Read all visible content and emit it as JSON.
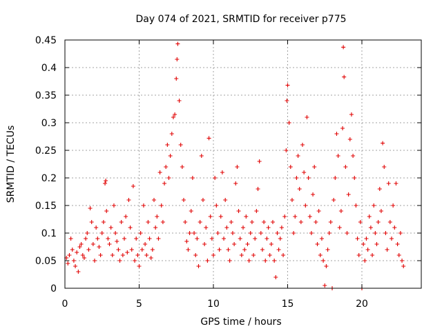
{
  "chart_data": {
    "type": "scatter",
    "title": "Day 074 of 2021, SRMTID for receiver p775",
    "xlabel": "GPS time / hours",
    "ylabel": "SRMTID / TECUs",
    "xlim": [
      0,
      24
    ],
    "ylim": [
      0,
      0.45
    ],
    "x_ticks": [
      0,
      5,
      10,
      15,
      20
    ],
    "x_tick_labels": [
      "0",
      "5",
      "10",
      "15",
      "20"
    ],
    "y_ticks": [
      0,
      0.05,
      0.1,
      0.15,
      0.2,
      0.25,
      0.3,
      0.35,
      0.4,
      0.45
    ],
    "y_tick_labels": [
      "0",
      "0.05",
      "0.1",
      "0.15",
      "0.2",
      "0.25",
      "0.3",
      "0.35",
      "0.4",
      "0.45"
    ],
    "grid": true,
    "marker": "plus",
    "color": "#e00000",
    "series": [
      {
        "name": "SRMTID",
        "points": [
          [
            0.1,
            0.055
          ],
          [
            0.2,
            0.045
          ],
          [
            0.3,
            0.06
          ],
          [
            0.4,
            0.09
          ],
          [
            0.5,
            0.07
          ],
          [
            0.6,
            0.05
          ],
          [
            0.7,
            0.04
          ],
          [
            0.8,
            0.065
          ],
          [
            0.9,
            0.03
          ],
          [
            1.0,
            0.075
          ],
          [
            1.1,
            0.08
          ],
          [
            1.2,
            0.06
          ],
          [
            1.3,
            0.055
          ],
          [
            1.4,
            0.09
          ],
          [
            1.5,
            0.1
          ],
          [
            1.6,
            0.07
          ],
          [
            1.7,
            0.145
          ],
          [
            1.8,
            0.12
          ],
          [
            1.9,
            0.08
          ],
          [
            2.0,
            0.05
          ],
          [
            2.1,
            0.11
          ],
          [
            2.2,
            0.09
          ],
          [
            2.3,
            0.075
          ],
          [
            2.4,
            0.06
          ],
          [
            2.5,
            0.1
          ],
          [
            2.6,
            0.12
          ],
          [
            2.7,
            0.19
          ],
          [
            2.75,
            0.195
          ],
          [
            2.8,
            0.14
          ],
          [
            2.9,
            0.09
          ],
          [
            3.0,
            0.08
          ],
          [
            3.1,
            0.11
          ],
          [
            3.2,
            0.06
          ],
          [
            3.3,
            0.15
          ],
          [
            3.4,
            0.1
          ],
          [
            3.5,
            0.085
          ],
          [
            3.6,
            0.07
          ],
          [
            3.7,
            0.05
          ],
          [
            3.8,
            0.12
          ],
          [
            3.9,
            0.06
          ],
          [
            4.0,
            0.09
          ],
          [
            4.1,
            0.13
          ],
          [
            4.2,
            0.065
          ],
          [
            4.3,
            0.16
          ],
          [
            4.4,
            0.11
          ],
          [
            4.5,
            0.07
          ],
          [
            4.6,
            0.185
          ],
          [
            4.7,
            0.05
          ],
          [
            4.8,
            0.09
          ],
          [
            4.9,
            0.06
          ],
          [
            5.0,
            0.04
          ],
          [
            5.1,
            0.1
          ],
          [
            5.2,
            0.07
          ],
          [
            5.3,
            0.15
          ],
          [
            5.4,
            0.08
          ],
          [
            5.5,
            0.06
          ],
          [
            5.6,
            0.12
          ],
          [
            5.7,
            0.09
          ],
          [
            5.8,
            0.055
          ],
          [
            5.9,
            0.07
          ],
          [
            6.0,
            0.16
          ],
          [
            6.1,
            0.11
          ],
          [
            6.2,
            0.13
          ],
          [
            6.3,
            0.09
          ],
          [
            6.4,
            0.21
          ],
          [
            6.5,
            0.15
          ],
          [
            6.6,
            0.12
          ],
          [
            6.7,
            0.19
          ],
          [
            6.8,
            0.22
          ],
          [
            6.9,
            0.26
          ],
          [
            7.0,
            0.2
          ],
          [
            7.1,
            0.24
          ],
          [
            7.2,
            0.28
          ],
          [
            7.3,
            0.31
          ],
          [
            7.4,
            0.315
          ],
          [
            7.5,
            0.38
          ],
          [
            7.55,
            0.415
          ],
          [
            7.6,
            0.443
          ],
          [
            7.7,
            0.34
          ],
          [
            7.8,
            0.26
          ],
          [
            7.9,
            0.22
          ],
          [
            8.0,
            0.16
          ],
          [
            8.1,
            0.12
          ],
          [
            8.2,
            0.085
          ],
          [
            8.3,
            0.07
          ],
          [
            8.4,
            0.1
          ],
          [
            8.5,
            0.14
          ],
          [
            8.6,
            0.2
          ],
          [
            8.7,
            0.1
          ],
          [
            8.8,
            0.06
          ],
          [
            8.9,
            0.09
          ],
          [
            9.0,
            0.04
          ],
          [
            9.1,
            0.12
          ],
          [
            9.2,
            0.24
          ],
          [
            9.3,
            0.16
          ],
          [
            9.4,
            0.08
          ],
          [
            9.5,
            0.11
          ],
          [
            9.6,
            0.05
          ],
          [
            9.7,
            0.272
          ],
          [
            9.8,
            0.13
          ],
          [
            9.9,
            0.09
          ],
          [
            10.0,
            0.06
          ],
          [
            10.1,
            0.2
          ],
          [
            10.2,
            0.15
          ],
          [
            10.3,
            0.1
          ],
          [
            10.4,
            0.07
          ],
          [
            10.5,
            0.13
          ],
          [
            10.6,
            0.21
          ],
          [
            10.7,
            0.09
          ],
          [
            10.8,
            0.16
          ],
          [
            10.9,
            0.11
          ],
          [
            11.0,
            0.07
          ],
          [
            11.1,
            0.05
          ],
          [
            11.2,
            0.12
          ],
          [
            11.3,
            0.1
          ],
          [
            11.4,
            0.08
          ],
          [
            11.5,
            0.19
          ],
          [
            11.6,
            0.22
          ],
          [
            11.7,
            0.14
          ],
          [
            11.8,
            0.09
          ],
          [
            11.9,
            0.06
          ],
          [
            12.0,
            0.11
          ],
          [
            12.1,
            0.07
          ],
          [
            12.2,
            0.13
          ],
          [
            12.3,
            0.08
          ],
          [
            12.4,
            0.05
          ],
          [
            12.5,
            0.1
          ],
          [
            12.6,
            0.12
          ],
          [
            12.7,
            0.06
          ],
          [
            12.8,
            0.09
          ],
          [
            12.9,
            0.14
          ],
          [
            13.0,
            0.18
          ],
          [
            13.1,
            0.23
          ],
          [
            13.2,
            0.1
          ],
          [
            13.3,
            0.07
          ],
          [
            13.4,
            0.12
          ],
          [
            13.5,
            0.05
          ],
          [
            13.6,
            0.09
          ],
          [
            13.7,
            0.11
          ],
          [
            13.8,
            0.06
          ],
          [
            13.9,
            0.08
          ],
          [
            14.0,
            0.12
          ],
          [
            14.1,
            0.05
          ],
          [
            14.2,
            0.02
          ],
          [
            14.3,
            0.1
          ],
          [
            14.4,
            0.07
          ],
          [
            14.5,
            0.09
          ],
          [
            14.6,
            0.11
          ],
          [
            14.7,
            0.06
          ],
          [
            14.8,
            0.13
          ],
          [
            14.9,
            0.25
          ],
          [
            14.95,
            0.34
          ],
          [
            15.0,
            0.368
          ],
          [
            15.1,
            0.3
          ],
          [
            15.2,
            0.22
          ],
          [
            15.3,
            0.16
          ],
          [
            15.4,
            0.1
          ],
          [
            15.5,
            0.13
          ],
          [
            15.6,
            0.2
          ],
          [
            15.7,
            0.24
          ],
          [
            15.8,
            0.18
          ],
          [
            15.9,
            0.12
          ],
          [
            16.0,
            0.26
          ],
          [
            16.1,
            0.21
          ],
          [
            16.2,
            0.15
          ],
          [
            16.3,
            0.31
          ],
          [
            16.4,
            0.2
          ],
          [
            16.5,
            0.13
          ],
          [
            16.6,
            0.1
          ],
          [
            16.7,
            0.17
          ],
          [
            16.8,
            0.22
          ],
          [
            16.9,
            0.12
          ],
          [
            17.0,
            0.08
          ],
          [
            17.1,
            0.14
          ],
          [
            17.2,
            0.06
          ],
          [
            17.3,
            0.09
          ],
          [
            17.4,
            0.05
          ],
          [
            17.5,
            0.005
          ],
          [
            17.6,
            0.04
          ],
          [
            17.7,
            0.07
          ],
          [
            17.8,
            0.1
          ],
          [
            17.9,
            0.12
          ],
          [
            18.0,
            0.0
          ],
          [
            18.1,
            0.16
          ],
          [
            18.2,
            0.2
          ],
          [
            18.3,
            0.28
          ],
          [
            18.4,
            0.24
          ],
          [
            18.5,
            0.11
          ],
          [
            18.6,
            0.14
          ],
          [
            18.7,
            0.29
          ],
          [
            18.75,
            0.437
          ],
          [
            18.8,
            0.383
          ],
          [
            18.9,
            0.22
          ],
          [
            19.0,
            0.1
          ],
          [
            19.1,
            0.17
          ],
          [
            19.2,
            0.27
          ],
          [
            19.3,
            0.315
          ],
          [
            19.4,
            0.24
          ],
          [
            19.5,
            0.2
          ],
          [
            19.6,
            0.15
          ],
          [
            19.7,
            0.09
          ],
          [
            19.8,
            0.06
          ],
          [
            19.9,
            0.12
          ],
          [
            20.0,
            0.0
          ],
          [
            20.1,
            0.08
          ],
          [
            20.2,
            0.05
          ],
          [
            20.3,
            0.09
          ],
          [
            20.4,
            0.07
          ],
          [
            20.5,
            0.13
          ],
          [
            20.6,
            0.11
          ],
          [
            20.7,
            0.06
          ],
          [
            20.8,
            0.15
          ],
          [
            20.9,
            0.1
          ],
          [
            21.0,
            0.08
          ],
          [
            21.1,
            0.12
          ],
          [
            21.2,
            0.18
          ],
          [
            21.3,
            0.14
          ],
          [
            21.4,
            0.263
          ],
          [
            21.5,
            0.22
          ],
          [
            21.6,
            0.1
          ],
          [
            21.7,
            0.07
          ],
          [
            21.8,
            0.19
          ],
          [
            21.9,
            0.12
          ],
          [
            22.0,
            0.09
          ],
          [
            22.1,
            0.15
          ],
          [
            22.2,
            0.11
          ],
          [
            22.3,
            0.19
          ],
          [
            22.4,
            0.08
          ],
          [
            22.5,
            0.06
          ],
          [
            22.6,
            0.1
          ],
          [
            22.7,
            0.05
          ],
          [
            22.8,
            0.04
          ]
        ]
      }
    ]
  }
}
